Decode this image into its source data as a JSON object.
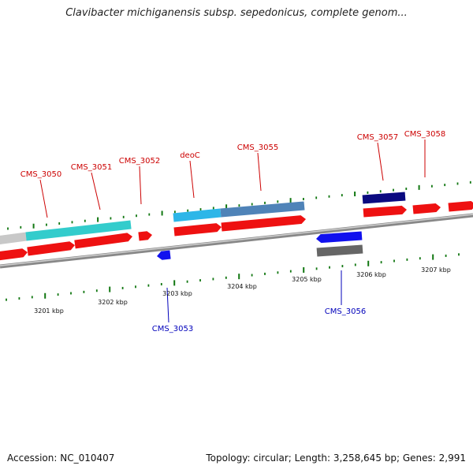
{
  "title": "Clavibacter michiganensis subsp. sepedonicus, complete genom...",
  "footer": {
    "accession": "Accession: NC_010407",
    "summary": "Topology: circular; Length: 3,258,645 bp; Genes: 2,991"
  },
  "colors": {
    "forward_cds": "#ee1111",
    "reverse_cds": "#1111ee",
    "forward_label": "#cc0000",
    "reverse_label": "#0000bb",
    "tick": "#117711",
    "backbone": "#999999",
    "gene_cyan": "#33cccc",
    "gene_steel": "#4f83b8",
    "gene_sky": "#2db6e8",
    "gene_navy": "#0a0a80",
    "gene_gray": "#666666"
  },
  "scale_labels": [
    "3201 kbp",
    "3202 kbp",
    "3203 kbp",
    "3204 kbp",
    "3205 kbp",
    "3206 kbp",
    "3207 kbp"
  ],
  "gene_labels": [
    {
      "text": "CMS_3050",
      "strand": "forward"
    },
    {
      "text": "CMS_3051",
      "strand": "forward"
    },
    {
      "text": "CMS_3052",
      "strand": "forward"
    },
    {
      "text": "deoC",
      "strand": "forward"
    },
    {
      "text": "CMS_3055",
      "strand": "forward"
    },
    {
      "text": "CMS_3057",
      "strand": "forward"
    },
    {
      "text": "CMS_3058",
      "strand": "forward"
    },
    {
      "text": "CMS_3053",
      "strand": "reverse"
    },
    {
      "text": "CMS_3056",
      "strand": "reverse"
    }
  ]
}
